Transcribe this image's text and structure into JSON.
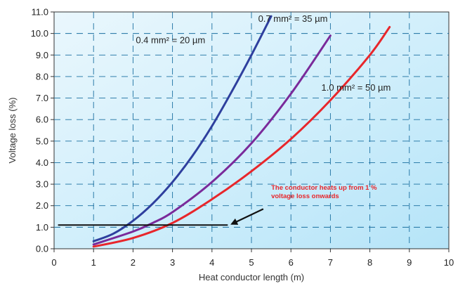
{
  "chart_data": {
    "type": "line",
    "xlabel": "Heat conductor length (m)",
    "ylabel": "Voltage loss (%)",
    "xlim": [
      0,
      10
    ],
    "ylim": [
      0,
      11
    ],
    "x_ticks": [
      "0",
      "1",
      "2",
      "3",
      "4",
      "5",
      "6",
      "7",
      "8",
      "9",
      "10"
    ],
    "y_ticks": [
      "0.0",
      "1.0",
      "2.0",
      "3.0",
      "4.0",
      "5.0",
      "6.0",
      "7.0",
      "8.0",
      "9.0",
      "10.0",
      "11.0"
    ],
    "grid": true,
    "grid_style": "dashed",
    "series": [
      {
        "name": "0.4  mm² = 20 µm",
        "color": "#2e3f9e",
        "points": [
          [
            1.0,
            0.35
          ],
          [
            1.5,
            0.7
          ],
          [
            2.0,
            1.3
          ],
          [
            2.5,
            2.1
          ],
          [
            3.0,
            3.1
          ],
          [
            3.5,
            4.3
          ],
          [
            4.0,
            5.7
          ],
          [
            4.5,
            7.3
          ],
          [
            5.0,
            9.0
          ],
          [
            5.5,
            10.8
          ]
        ]
      },
      {
        "name": "0.7  mm² = 35 µm",
        "color": "#7a2a9a",
        "points": [
          [
            1.0,
            0.2
          ],
          [
            2.0,
            0.8
          ],
          [
            2.5,
            1.2
          ],
          [
            3.0,
            1.7
          ],
          [
            4.0,
            3.1
          ],
          [
            5.0,
            4.9
          ],
          [
            6.0,
            7.2
          ],
          [
            7.0,
            9.9
          ]
        ]
      },
      {
        "name": "1.0  mm² = 50 µm",
        "color": "#e8262b",
        "points": [
          [
            1.0,
            0.1
          ],
          [
            2.0,
            0.5
          ],
          [
            3.0,
            1.2
          ],
          [
            4.0,
            2.3
          ],
          [
            5.0,
            3.6
          ],
          [
            6.0,
            5.1
          ],
          [
            7.0,
            6.9
          ],
          [
            8.0,
            9.0
          ],
          [
            8.5,
            10.3
          ]
        ]
      }
    ],
    "reference_line": {
      "y": 1.1,
      "x_start": 0.1,
      "x_end": 4.4,
      "color": "#111111"
    },
    "annotation": {
      "lines": [
        "The conductor heats up from 1 %",
        "voltage loss onwards"
      ],
      "color": "#e8262b",
      "arrow_from": [
        5.3,
        1.85
      ],
      "arrow_to": [
        4.5,
        1.15
      ]
    }
  }
}
